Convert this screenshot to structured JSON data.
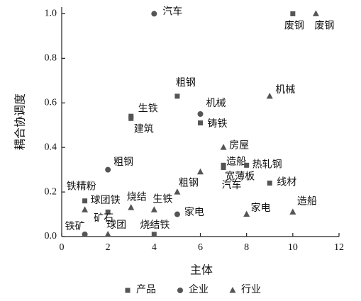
{
  "chart_data": {
    "type": "scatter",
    "xlabel": "主体",
    "ylabel": "耦合协调度",
    "xlim": [
      0,
      12
    ],
    "xticks": [
      0,
      2,
      4,
      6,
      8,
      10,
      12
    ],
    "ylim": [
      0,
      1.03
    ],
    "yticks": [
      {
        "value": 0,
        "label": "0.0"
      },
      0.2,
      0.4,
      0.6,
      0.8,
      {
        "value": 1,
        "label": "1.0"
      }
    ],
    "series": [
      {
        "name": "产品",
        "marker": "square",
        "color": "#555555",
        "x": [
          10,
          5,
          3,
          3,
          6,
          7,
          7,
          8,
          9,
          1,
          2,
          4
        ],
        "values": [
          1.0,
          0.63,
          0.54,
          0.53,
          0.51,
          0.32,
          0.31,
          0.32,
          0.24,
          0.16,
          0.11,
          0.01
        ],
        "labels": [
          "废钢",
          "粗钢",
          "生铁",
          "建筑",
          "铸铁",
          "造船",
          "宽薄板",
          "热轧钢",
          "线材",
          "球团铁",
          "矿石",
          "烧结铁"
        ]
      },
      {
        "name": "企业",
        "marker": "circle",
        "color": "#555555",
        "x": [
          4,
          2,
          6,
          5,
          1
        ],
        "values": [
          1.0,
          0.3,
          0.55,
          0.1,
          0.01
        ],
        "labels": [
          "汽车",
          "粗钢",
          "机械",
          "家电",
          "铁矿"
        ]
      },
      {
        "name": "行业",
        "marker": "triangle",
        "color": "#555555",
        "x": [
          11,
          9,
          7,
          6,
          5,
          4,
          3,
          1,
          2,
          8,
          10
        ],
        "values": [
          1.0,
          0.63,
          0.4,
          0.29,
          0.2,
          0.12,
          0.13,
          0.12,
          0.01,
          0.1,
          0.11
        ],
        "labels": [
          "废钢",
          "机械",
          "房屋",
          "汽车",
          "粗钢",
          "生铁",
          "烧结",
          "铁精粉",
          "球团",
          "家电",
          "造船"
        ]
      }
    ]
  }
}
